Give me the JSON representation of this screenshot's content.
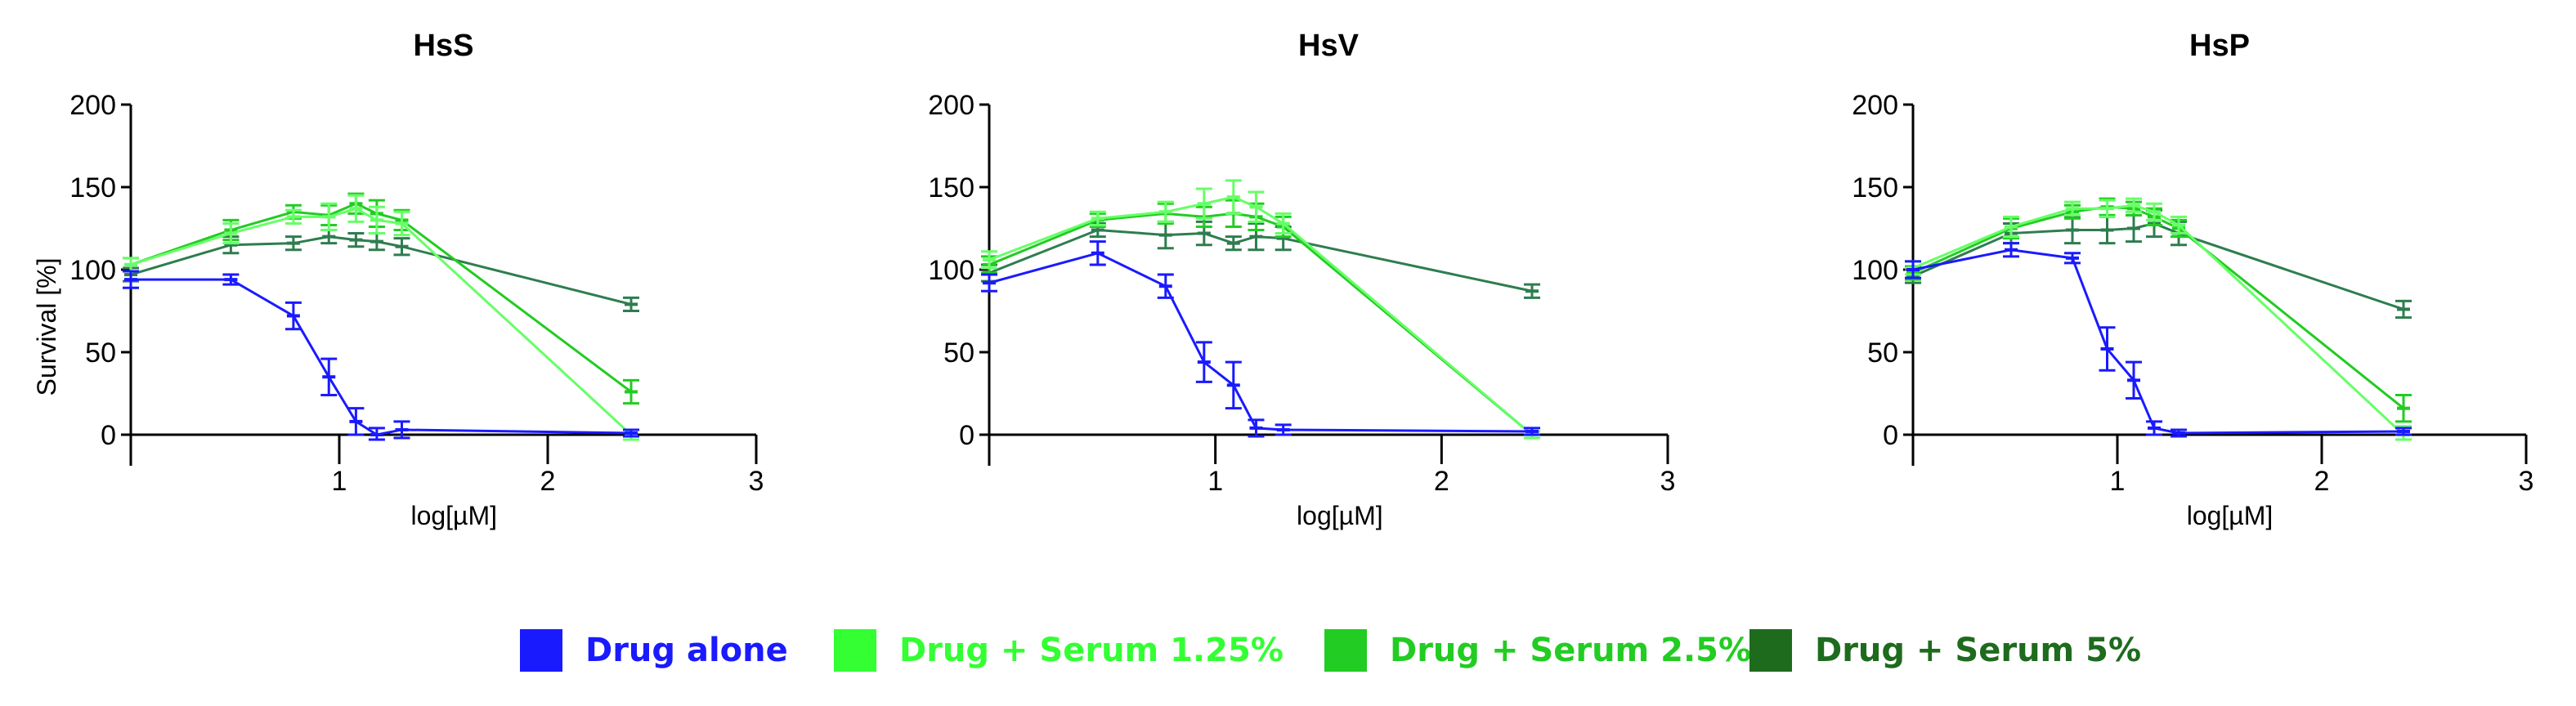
{
  "chart_data": [
    {
      "type": "line",
      "title": "HsS",
      "xlabel": "log[µM]",
      "ylabel": "Survival [%]",
      "xlim": [
        0,
        3
      ],
      "ylim": [
        0,
        200
      ],
      "xticks": [
        "1",
        "2",
        "3"
      ],
      "yticks": [
        "0",
        "50",
        "100",
        "150",
        "200"
      ],
      "series": [
        {
          "name": "Drug alone",
          "color": "#1a1aff",
          "x": [
            0,
            0.48,
            0.78,
            0.95,
            1.08,
            1.18,
            1.3,
            2.4
          ],
          "y": [
            94,
            94,
            72,
            35,
            8,
            0,
            3,
            1
          ],
          "err": [
            5,
            3,
            8,
            11,
            8,
            4,
            5,
            2
          ]
        },
        {
          "name": "Drug + Serum 1.25%",
          "color": "#66ff66",
          "x": [
            0,
            0.48,
            0.78,
            0.95,
            1.08,
            1.18,
            1.3,
            2.4
          ],
          "y": [
            103,
            122,
            132,
            132,
            137,
            130,
            128,
            0
          ],
          "err": [
            4,
            6,
            4,
            8,
            8,
            8,
            7,
            3
          ]
        },
        {
          "name": "Drug + Serum 2.5%",
          "color": "#22cc22",
          "x": [
            0,
            0.48,
            0.78,
            0.95,
            1.08,
            1.18,
            1.3,
            2.4
          ],
          "y": [
            103,
            124,
            135,
            133,
            140,
            134,
            130,
            26
          ],
          "err": [
            4,
            6,
            4,
            6,
            6,
            8,
            6,
            7
          ]
        },
        {
          "name": "Drug + Serum 5%",
          "color": "#2e7d4f",
          "x": [
            0,
            0.48,
            0.78,
            0.95,
            1.08,
            1.18,
            1.3,
            2.4
          ],
          "y": [
            97,
            115,
            116,
            120,
            118,
            117,
            114,
            79
          ],
          "err": [
            4,
            5,
            4,
            4,
            4,
            5,
            5,
            4
          ]
        }
      ]
    },
    {
      "type": "line",
      "title": "HsV",
      "xlabel": "log[µM]",
      "ylabel": "",
      "xlim": [
        0,
        3
      ],
      "ylim": [
        0,
        200
      ],
      "xticks": [
        "1",
        "2",
        "3"
      ],
      "yticks": [
        "0",
        "50",
        "100",
        "150",
        "200"
      ],
      "series": [
        {
          "name": "Drug alone",
          "color": "#1a1aff",
          "x": [
            0,
            0.48,
            0.78,
            0.95,
            1.08,
            1.18,
            1.3,
            2.4
          ],
          "y": [
            92,
            110,
            90,
            44,
            30,
            4,
            3,
            2
          ],
          "err": [
            5,
            7,
            7,
            12,
            14,
            5,
            3,
            2
          ]
        },
        {
          "name": "Drug + Serum 1.25%",
          "color": "#66ff66",
          "x": [
            0,
            0.48,
            0.78,
            0.95,
            1.08,
            1.18,
            1.3,
            2.4
          ],
          "y": [
            106,
            131,
            135,
            140,
            144,
            138,
            128,
            0
          ],
          "err": [
            5,
            4,
            6,
            9,
            10,
            9,
            6,
            2
          ]
        },
        {
          "name": "Drug + Serum 2.5%",
          "color": "#22cc22",
          "x": [
            0,
            0.48,
            0.78,
            0.95,
            1.08,
            1.18,
            1.3,
            2.4
          ],
          "y": [
            103,
            130,
            134,
            132,
            134,
            132,
            126,
            0
          ],
          "err": [
            5,
            4,
            6,
            6,
            8,
            8,
            6,
            2
          ]
        },
        {
          "name": "Drug + Serum 5%",
          "color": "#2e7d4f",
          "x": [
            0,
            0.48,
            0.78,
            0.95,
            1.08,
            1.18,
            1.3,
            2.4
          ],
          "y": [
            98,
            124,
            121,
            122,
            116,
            120,
            119,
            87
          ],
          "err": [
            5,
            4,
            8,
            7,
            4,
            8,
            7,
            4
          ]
        }
      ]
    },
    {
      "type": "line",
      "title": "HsP",
      "xlabel": "log[µM]",
      "ylabel": "",
      "xlim": [
        0,
        3
      ],
      "ylim": [
        0,
        200
      ],
      "xticks": [
        "1",
        "2",
        "3"
      ],
      "yticks": [
        "0",
        "50",
        "100",
        "150",
        "200"
      ],
      "series": [
        {
          "name": "Drug alone",
          "color": "#1a1aff",
          "x": [
            0,
            0.48,
            0.78,
            0.95,
            1.08,
            1.18,
            1.3,
            2.4
          ],
          "y": [
            100,
            112,
            107,
            52,
            33,
            4,
            1,
            2
          ],
          "err": [
            5,
            4,
            3,
            13,
            11,
            4,
            2,
            2
          ]
        },
        {
          "name": "Drug + Serum 1.25%",
          "color": "#66ff66",
          "x": [
            0,
            0.48,
            0.78,
            0.95,
            1.08,
            1.18,
            1.3,
            2.4
          ],
          "y": [
            101,
            126,
            137,
            137,
            139,
            135,
            127,
            0
          ],
          "err": [
            4,
            6,
            4,
            5,
            4,
            5,
            5,
            5
          ]
        },
        {
          "name": "Drug + Serum 2.5%",
          "color": "#22cc22",
          "x": [
            0,
            0.48,
            0.78,
            0.95,
            1.08,
            1.18,
            1.3,
            2.4
          ],
          "y": [
            98,
            125,
            135,
            138,
            137,
            132,
            125,
            16
          ],
          "err": [
            4,
            6,
            4,
            5,
            4,
            5,
            5,
            8
          ]
        },
        {
          "name": "Drug + Serum 5%",
          "color": "#2e7d4f",
          "x": [
            0,
            0.48,
            0.78,
            0.95,
            1.08,
            1.18,
            1.3,
            2.4
          ],
          "y": [
            96,
            122,
            124,
            124,
            125,
            128,
            122,
            76
          ],
          "err": [
            4,
            6,
            8,
            8,
            8,
            8,
            7,
            5
          ]
        }
      ]
    }
  ],
  "legend": {
    "items": [
      {
        "label": "Drug alone",
        "color": "#1a1aff"
      },
      {
        "label": "Drug + Serum 1.25%",
        "color": "#33ff33"
      },
      {
        "label": "Drug + Serum 2.5%",
        "color": "#22cc22"
      },
      {
        "label": "Drug + Serum 5%",
        "color": "#1e6b1e"
      }
    ]
  }
}
